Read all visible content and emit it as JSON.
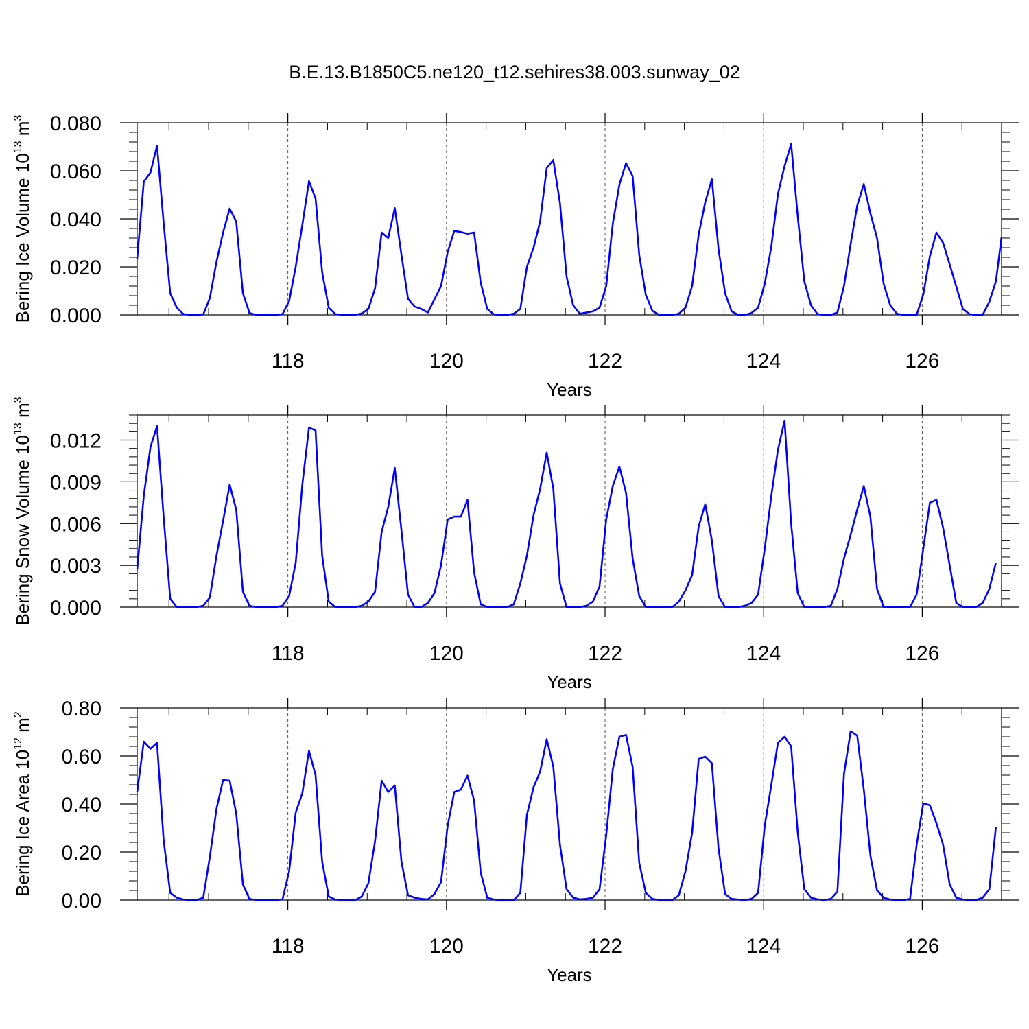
{
  "figure": {
    "title": "B.E.13.B1850C5.ne120_t12.sehires38.003.sunway_02",
    "line_color": "#0000ff"
  },
  "chart_data": [
    {
      "type": "line",
      "title": "",
      "xlabel": "Years",
      "ylabel": "Bering Ice Volume 10",
      "ylabel_exp": "13",
      "ylabel_unit": " m",
      "ylabel_unit_exp": "3",
      "xlim": [
        116.1,
        127.0
      ],
      "ylim": [
        0.0,
        0.08
      ],
      "xticks": [
        118,
        120,
        122,
        124,
        126
      ],
      "xtick_labels": [
        "118",
        "120",
        "122",
        "124",
        "126"
      ],
      "yticks": [
        0.0,
        0.02,
        0.04,
        0.06,
        0.08
      ],
      "ytick_labels": [
        "0.000",
        "0.020",
        "0.040",
        "0.060",
        "0.080"
      ],
      "y_minor_step": 0.004,
      "x_minor_step": 0.5,
      "grid": "dashed vertical lines at major x ticks",
      "legend": "none",
      "series": [
        {
          "x_start": 116.1,
          "x_step": 0.0833,
          "values": [
            0.0235,
            0.0555,
            0.0593,
            0.0705,
            0.0385,
            0.009,
            0.003,
            0.0003,
            0.0,
            0.0,
            0.0002,
            0.007,
            0.0222,
            0.0343,
            0.0443,
            0.0388,
            0.009,
            0.0008,
            0.0,
            0.0,
            0.0,
            0.0,
            0.0003,
            0.0058,
            0.0201,
            0.0375,
            0.0557,
            0.0485,
            0.0178,
            0.003,
            0.0003,
            0.0,
            0.0,
            0.0,
            0.0006,
            0.0025,
            0.011,
            0.0343,
            0.032,
            0.0445,
            0.025,
            0.0067,
            0.0035,
            0.0025,
            0.001,
            0.0065,
            0.012,
            0.0262,
            0.035,
            0.0345,
            0.0338,
            0.0343,
            0.0135,
            0.0025,
            0.0002,
            0.0,
            0.0,
            0.0005,
            0.0025,
            0.02,
            0.028,
            0.039,
            0.0612,
            0.0645,
            0.0465,
            0.016,
            0.004,
            0.0005,
            0.001,
            0.0015,
            0.003,
            0.012,
            0.038,
            0.0543,
            0.0632,
            0.0578,
            0.025,
            0.0083,
            0.0017,
            0.0,
            0.0,
            0.0,
            0.0005,
            0.003,
            0.012,
            0.0335,
            0.047,
            0.0565,
            0.0275,
            0.009,
            0.0015,
            0.0,
            0.0,
            0.0008,
            0.003,
            0.013,
            0.0285,
            0.0503,
            0.062,
            0.0712,
            0.041,
            0.014,
            0.004,
            0.0003,
            0.0,
            0.0,
            0.001,
            0.012,
            0.0295,
            0.0455,
            0.0545,
            0.0423,
            0.032,
            0.013,
            0.004,
            0.0005,
            0.0,
            0.0,
            0.0,
            0.0085,
            0.0245,
            0.0343,
            0.03,
            0.021,
            0.0118,
            0.0025,
            0.0003,
            0.0,
            0.0,
            0.0055,
            0.014,
            0.0325
          ]
        }
      ]
    },
    {
      "type": "line",
      "title": "",
      "xlabel": "Years",
      "ylabel": "Bering Snow Volume 10",
      "ylabel_exp": "13",
      "ylabel_unit": " m",
      "ylabel_unit_exp": "3",
      "xlim": [
        116.1,
        127.0
      ],
      "ylim": [
        0.0,
        0.0138
      ],
      "xticks": [
        118,
        120,
        122,
        124,
        126
      ],
      "xtick_labels": [
        "118",
        "120",
        "122",
        "124",
        "126"
      ],
      "yticks": [
        0.0,
        0.003,
        0.006,
        0.009,
        0.012
      ],
      "ytick_labels": [
        "0.000",
        "0.003",
        "0.006",
        "0.009",
        "0.012"
      ],
      "y_minor_step": 0.0006,
      "x_minor_step": 0.5,
      "grid": "dashed vertical lines at major x ticks",
      "legend": "none",
      "series": [
        {
          "x_start": 116.1,
          "x_step": 0.0833,
          "values": [
            0.0027,
            0.008,
            0.0115,
            0.013,
            0.0065,
            0.0006,
            0.0,
            0.0,
            0.0,
            0.0,
            0.0001,
            0.0007,
            0.0037,
            0.0062,
            0.0088,
            0.007,
            0.0011,
            0.0001,
            0.0,
            0.0,
            0.0,
            0.0,
            0.0001,
            0.0008,
            0.0032,
            0.0088,
            0.0129,
            0.0127,
            0.0037,
            0.0004,
            0.0,
            0.0,
            0.0,
            0.0,
            0.0001,
            0.0004,
            0.0011,
            0.0054,
            0.0072,
            0.01,
            0.0055,
            0.0009,
            0.0,
            0.0,
            0.0003,
            0.001,
            0.003,
            0.0063,
            0.0065,
            0.0065,
            0.0077,
            0.0025,
            0.0002,
            0.0,
            0.0,
            0.0,
            0.0,
            0.0002,
            0.0017,
            0.0037,
            0.0066,
            0.0085,
            0.0111,
            0.0085,
            0.0017,
            0.0,
            0.0,
            0.0,
            0.0001,
            0.0004,
            0.0015,
            0.0063,
            0.0087,
            0.0101,
            0.0082,
            0.0035,
            0.0008,
            0.0,
            0.0,
            0.0,
            0.0,
            0.0,
            0.0004,
            0.0012,
            0.0023,
            0.0058,
            0.0074,
            0.0048,
            0.0008,
            0.0,
            0.0,
            0.0,
            0.0001,
            0.0003,
            0.0009,
            0.0042,
            0.008,
            0.0113,
            0.0134,
            0.006,
            0.001,
            0.0,
            0.0,
            0.0,
            0.0,
            0.0001,
            0.0013,
            0.0035,
            0.0052,
            0.007,
            0.0087,
            0.0065,
            0.0013,
            0.0,
            0.0,
            0.0,
            0.0,
            0.0,
            0.0009,
            0.0042,
            0.0075,
            0.0077,
            0.0057,
            0.003,
            0.0003,
            0.0,
            0.0,
            0.0,
            0.0003,
            0.0013,
            0.0032
          ]
        }
      ]
    },
    {
      "type": "line",
      "title": "",
      "xlabel": "Years",
      "ylabel": "Bering Ice Area 10",
      "ylabel_exp": "12",
      "ylabel_unit": " m",
      "ylabel_unit_exp": "2",
      "xlim": [
        116.1,
        127.0
      ],
      "ylim": [
        0.0,
        0.8
      ],
      "xticks": [
        118,
        120,
        122,
        124,
        126
      ],
      "xtick_labels": [
        "118",
        "120",
        "122",
        "124",
        "126"
      ],
      "yticks": [
        0.0,
        0.2,
        0.4,
        0.6,
        0.8
      ],
      "ytick_labels": [
        "0.00",
        "0.20",
        "0.40",
        "0.60",
        "0.80"
      ],
      "y_minor_step": 0.04,
      "x_minor_step": 0.5,
      "grid": "dashed vertical lines at major x ticks",
      "legend": "none",
      "series": [
        {
          "x_start": 116.1,
          "x_step": 0.0833,
          "values": [
            0.45,
            0.66,
            0.63,
            0.655,
            0.25,
            0.03,
            0.01,
            0.002,
            0.0,
            0.0,
            0.01,
            0.18,
            0.38,
            0.5,
            0.497,
            0.36,
            0.065,
            0.005,
            0.0,
            0.0,
            0.0,
            0.0,
            0.003,
            0.12,
            0.365,
            0.445,
            0.622,
            0.52,
            0.16,
            0.015,
            0.002,
            0.0,
            0.0,
            0.0,
            0.015,
            0.07,
            0.245,
            0.497,
            0.45,
            0.477,
            0.16,
            0.02,
            0.01,
            0.005,
            0.003,
            0.025,
            0.075,
            0.31,
            0.45,
            0.46,
            0.518,
            0.415,
            0.115,
            0.01,
            0.002,
            0.0,
            0.0,
            0.0,
            0.03,
            0.355,
            0.47,
            0.535,
            0.67,
            0.555,
            0.23,
            0.045,
            0.01,
            0.003,
            0.005,
            0.01,
            0.045,
            0.27,
            0.545,
            0.68,
            0.688,
            0.555,
            0.155,
            0.03,
            0.005,
            0.0,
            0.0,
            0.0,
            0.02,
            0.12,
            0.28,
            0.588,
            0.597,
            0.57,
            0.215,
            0.025,
            0.005,
            0.002,
            0.0,
            0.005,
            0.03,
            0.31,
            0.48,
            0.655,
            0.68,
            0.64,
            0.28,
            0.045,
            0.01,
            0.003,
            0.0,
            0.005,
            0.035,
            0.525,
            0.703,
            0.685,
            0.46,
            0.185,
            0.04,
            0.01,
            0.002,
            0.0,
            0.0,
            0.005,
            0.23,
            0.403,
            0.395,
            0.32,
            0.23,
            0.065,
            0.01,
            0.002,
            0.0,
            0.0,
            0.01,
            0.045,
            0.305
          ]
        }
      ]
    }
  ]
}
